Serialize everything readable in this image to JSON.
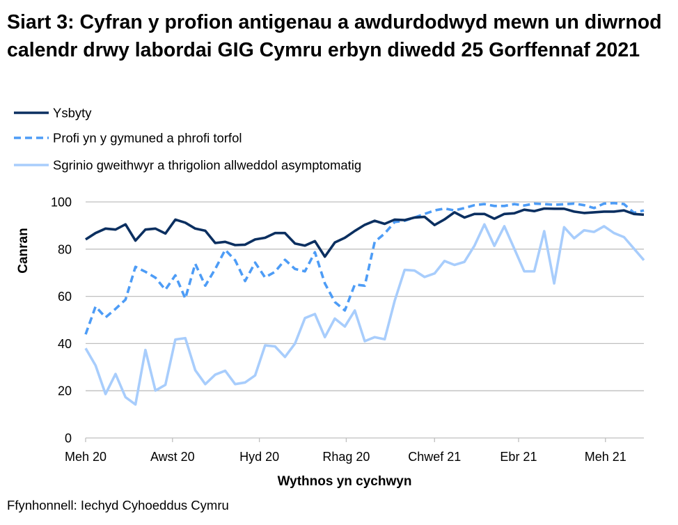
{
  "chart_data": {
    "type": "line",
    "title": "Siart 3: Cyfran y profion antigenau a awdurdodwyd mewn un diwrnod calendr drwy labordai GIG Cymru erbyn diwedd 25 Gorffennaf 2021",
    "xlabel": "Wythnos yn cychwyn",
    "ylabel": "Canran",
    "ylim": [
      0,
      100
    ],
    "yticks": [
      0,
      20,
      40,
      60,
      80,
      100
    ],
    "grid": true,
    "legend_position": "top-left",
    "xticks": [
      {
        "date": "2020-06-01",
        "label": "Meh 20"
      },
      {
        "date": "2020-08-01",
        "label": "Awst 20"
      },
      {
        "date": "2020-10-01",
        "label": "Hyd 20"
      },
      {
        "date": "2020-12-01",
        "label": "Rhag 20"
      },
      {
        "date": "2021-02-01",
        "label": "Chwef 21"
      },
      {
        "date": "2021-04-01",
        "label": "Ebr 21"
      },
      {
        "date": "2021-06-01",
        "label": "Meh 21"
      }
    ],
    "x": [
      "2020-06-01",
      "2020-06-08",
      "2020-06-15",
      "2020-06-22",
      "2020-06-29",
      "2020-07-06",
      "2020-07-13",
      "2020-07-20",
      "2020-07-27",
      "2020-08-03",
      "2020-08-10",
      "2020-08-17",
      "2020-08-24",
      "2020-08-31",
      "2020-09-07",
      "2020-09-14",
      "2020-09-21",
      "2020-09-28",
      "2020-10-05",
      "2020-10-12",
      "2020-10-19",
      "2020-10-26",
      "2020-11-02",
      "2020-11-09",
      "2020-11-16",
      "2020-11-23",
      "2020-11-30",
      "2020-12-07",
      "2020-12-14",
      "2020-12-21",
      "2020-12-28",
      "2021-01-04",
      "2021-01-11",
      "2021-01-18",
      "2021-01-25",
      "2021-02-01",
      "2021-02-08",
      "2021-02-15",
      "2021-02-22",
      "2021-03-01",
      "2021-03-08",
      "2021-03-15",
      "2021-03-22",
      "2021-03-29",
      "2021-04-05",
      "2021-04-12",
      "2021-04-19",
      "2021-04-26",
      "2021-05-03",
      "2021-05-10",
      "2021-05-17",
      "2021-05-24",
      "2021-05-31",
      "2021-06-07",
      "2021-06-14",
      "2021-06-21",
      "2021-06-28"
    ],
    "series": [
      {
        "name": "Ysbyty",
        "color": "#0b2f60",
        "dash": "solid",
        "values": [
          84.1,
          86.8,
          88.7,
          88.3,
          90.5,
          83.6,
          88.3,
          88.7,
          86.6,
          92.5,
          91.2,
          88.7,
          87.8,
          82.6,
          83.1,
          81.7,
          81.9,
          84.1,
          84.8,
          86.8,
          86.8,
          82.4,
          81.5,
          83.4,
          76.8,
          82.8,
          84.8,
          87.7,
          90.3,
          92.0,
          90.7,
          92.5,
          92.3,
          93.4,
          93.7,
          90.2,
          92.6,
          95.6,
          93.4,
          94.9,
          94.9,
          92.9,
          94.9,
          95.2,
          96.7,
          96.1,
          97.2,
          97.1,
          97.1,
          95.9,
          95.3,
          95.6,
          95.9,
          95.9,
          96.4,
          94.9,
          94.6
        ]
      },
      {
        "name": "Profi yn y gymuned a phrofi torfol",
        "color": "#4d9cf6",
        "dash": "dashed",
        "values": [
          43.9,
          55.7,
          51.1,
          54.7,
          58.6,
          72.5,
          70.4,
          67.9,
          62.8,
          68.9,
          59.1,
          73.8,
          64.5,
          71.6,
          79.7,
          75.3,
          66.5,
          74.3,
          68.0,
          70.4,
          75.5,
          71.6,
          70.6,
          78.7,
          65.5,
          57.6,
          54.0,
          65.0,
          64.5,
          83.1,
          86.6,
          91.5,
          92.0,
          93.4,
          94.9,
          96.4,
          97.2,
          96.4,
          97.4,
          98.6,
          99.1,
          98.3,
          98.3,
          99.1,
          98.5,
          99.3,
          99.1,
          98.8,
          99.0,
          99.3,
          98.6,
          97.4,
          99.3,
          99.5,
          99.1,
          95.4,
          96.4
        ]
      },
      {
        "name": "Sgrinio gweithwyr a thrigolion allweddol asymptomatig",
        "color": "#a8cdfc",
        "dash": "solid",
        "values": [
          38.0,
          30.7,
          18.6,
          27.1,
          17.3,
          14.2,
          37.3,
          20.1,
          22.5,
          41.7,
          42.3,
          28.7,
          22.8,
          26.8,
          28.5,
          22.8,
          23.5,
          26.5,
          39.2,
          38.8,
          34.3,
          40.0,
          50.8,
          52.5,
          42.7,
          50.6,
          47.2,
          54.0,
          41.0,
          42.7,
          41.8,
          58.1,
          71.2,
          70.9,
          68.2,
          69.7,
          75.0,
          73.3,
          74.6,
          81.4,
          90.5,
          81.4,
          89.7,
          80.2,
          70.6,
          70.6,
          87.6,
          65.5,
          89.3,
          84.6,
          88.0,
          87.3,
          89.7,
          86.8,
          85.1,
          80.2,
          75.3
        ]
      }
    ]
  },
  "source": "Ffynhonnell: Iechyd Cyhoeddus Cymru"
}
